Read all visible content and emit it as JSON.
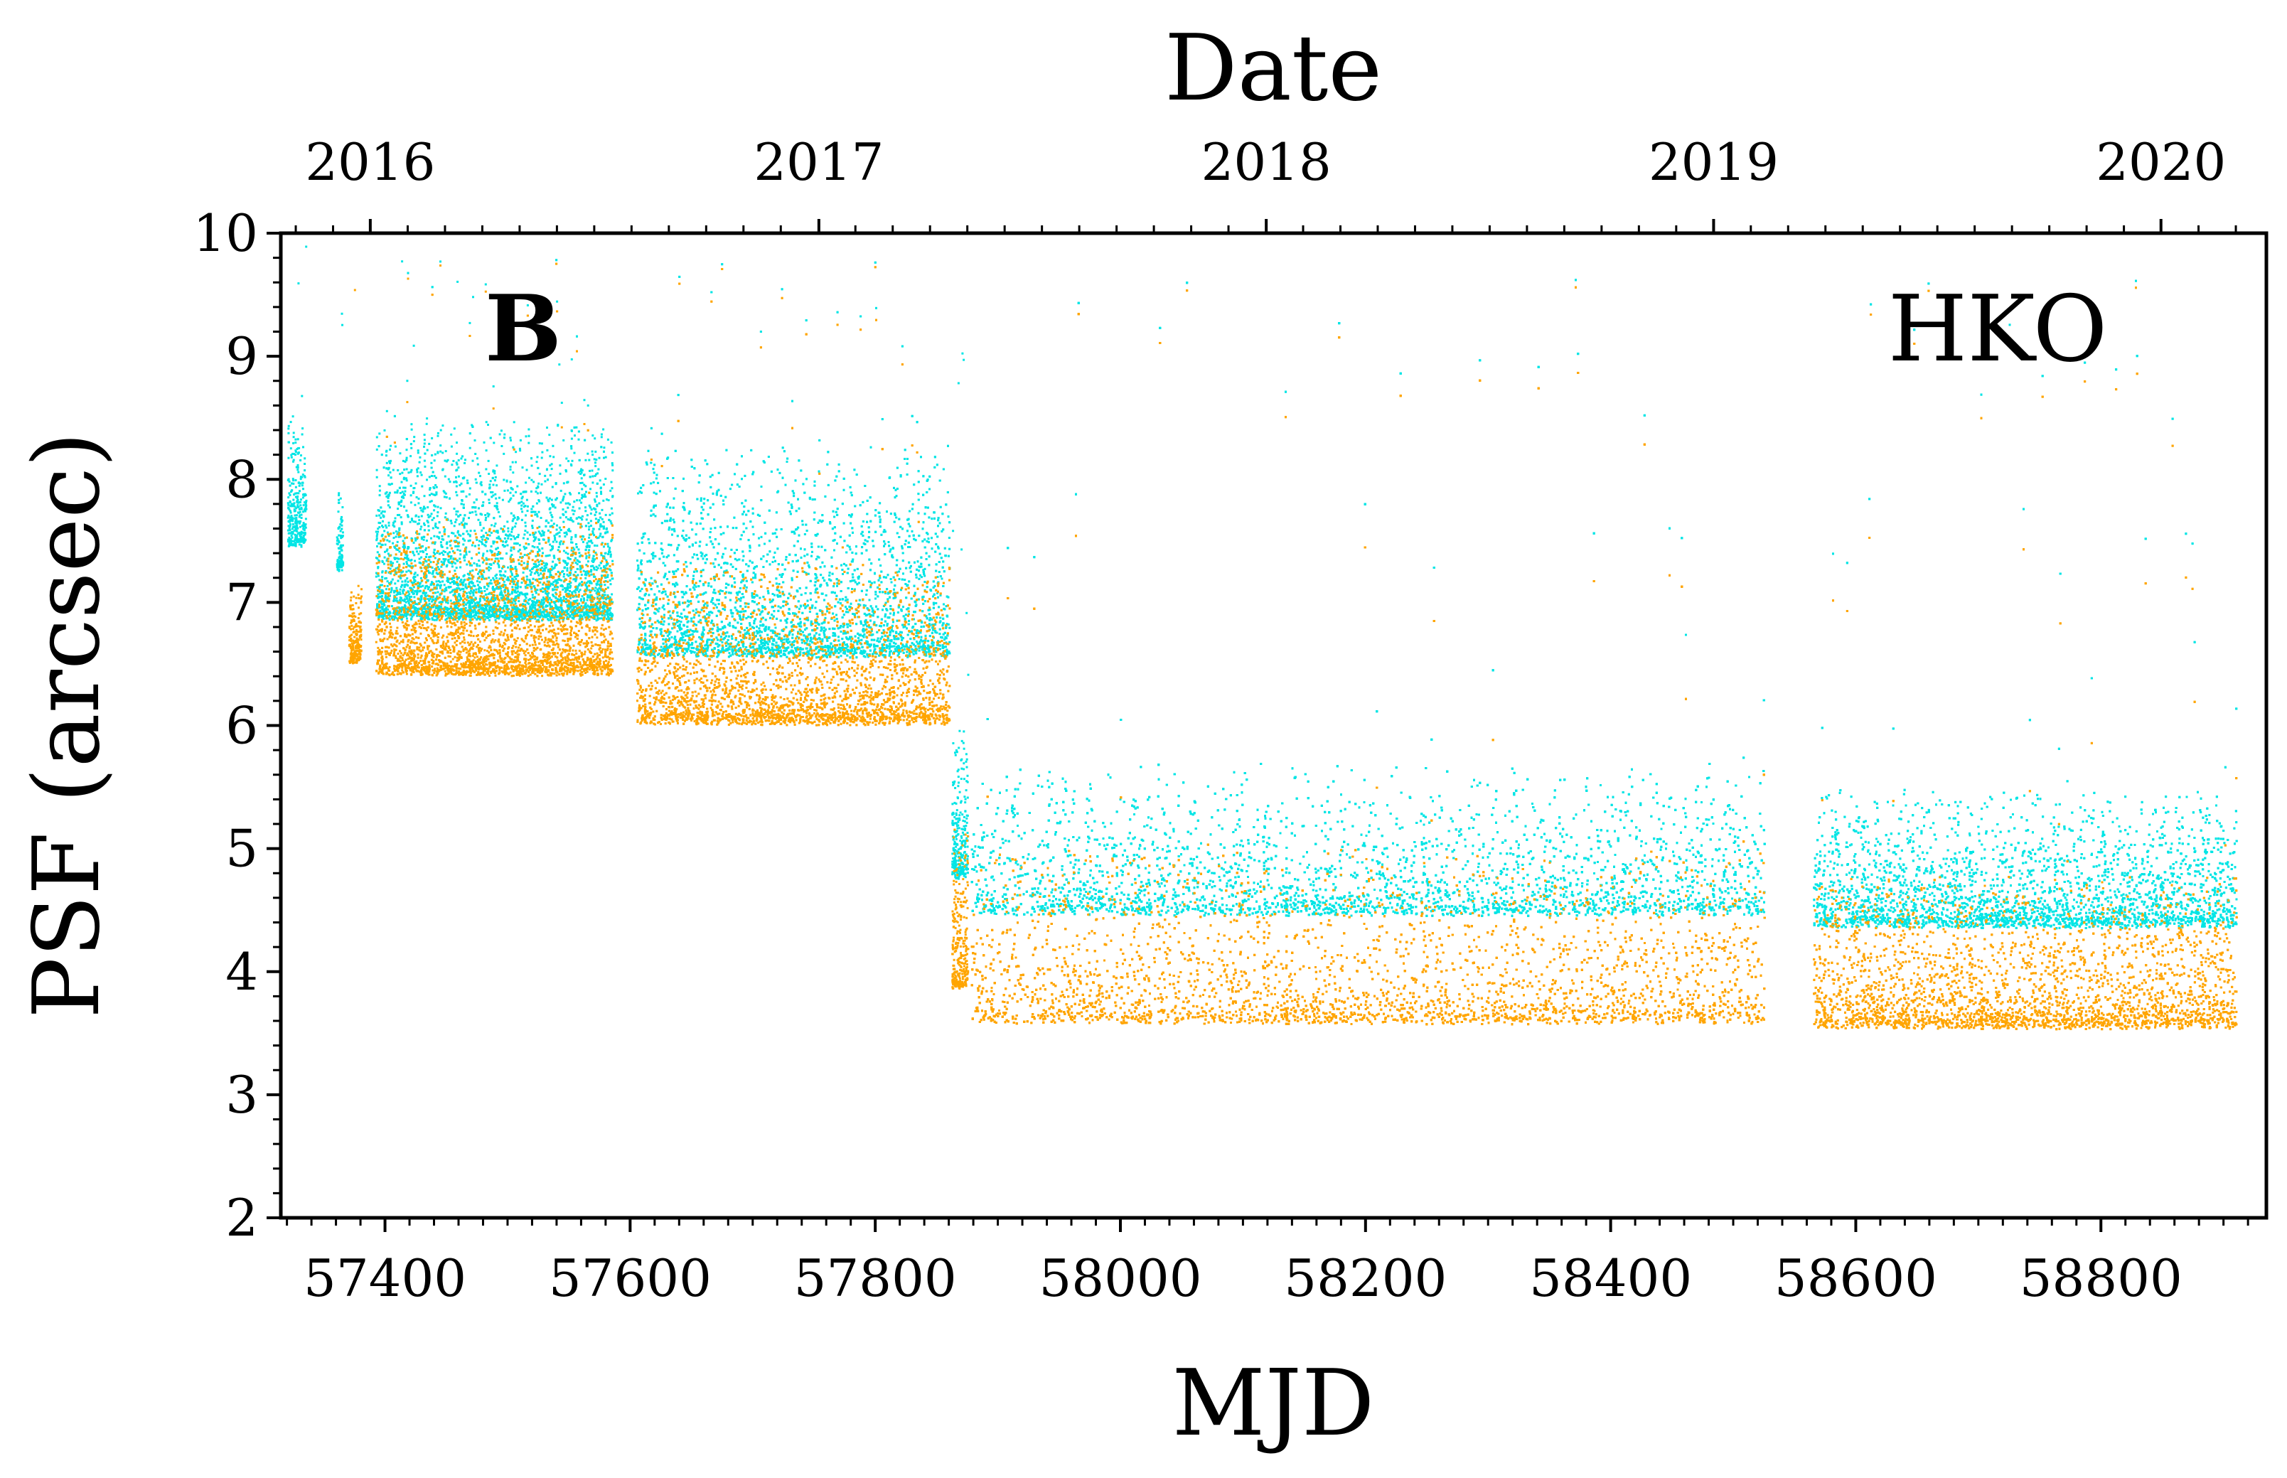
{
  "chart_data": {
    "type": "scatter",
    "panel_label": "B",
    "site_label": "HKO",
    "xlabel": "MJD",
    "ylabel": "PSF (arcsec)",
    "top_axis_title": "Date",
    "xlim": [
      57315,
      58935
    ],
    "ylim": [
      2,
      10
    ],
    "x_ticks": [
      "57400",
      "57600",
      "57800",
      "58000",
      "58200",
      "58400",
      "58600",
      "58800"
    ],
    "x_tick_values": [
      57400,
      57600,
      57800,
      58000,
      58200,
      58400,
      58600,
      58800
    ],
    "y_ticks": [
      "2",
      "3",
      "4",
      "5",
      "6",
      "7",
      "8",
      "9",
      "10"
    ],
    "y_tick_values": [
      2,
      3,
      4,
      5,
      6,
      7,
      8,
      9,
      10
    ],
    "top_ticks": [
      "2016",
      "2017",
      "2018",
      "2019",
      "2020"
    ],
    "top_tick_values": [
      57388,
      57754,
      58119,
      58484,
      58849
    ],
    "series": [
      {
        "name": "cyan",
        "color": "#00e5e5",
        "segments": [
          {
            "start": 57320,
            "end": 57335,
            "base": 7.5,
            "amp": 1.0
          },
          {
            "start": 57360,
            "end": 57365,
            "base": 7.3,
            "amp": 0.6
          },
          {
            "start": 57392,
            "end": 57585,
            "base": 6.9,
            "amp": 1.6
          },
          {
            "start": 57605,
            "end": 57860,
            "base": 6.6,
            "amp": 1.7
          },
          {
            "start": 57862,
            "end": 57875,
            "base": 4.8,
            "amp": 1.2
          },
          {
            "start": 57878,
            "end": 58525,
            "base": 4.5,
            "amp": 1.2
          },
          {
            "start": 58565,
            "end": 58910,
            "base": 4.4,
            "amp": 1.1
          }
        ]
      },
      {
        "name": "orange",
        "color": "#ffa500",
        "segments": [
          {
            "start": 57370,
            "end": 57380,
            "base": 6.55,
            "amp": 0.6
          },
          {
            "start": 57392,
            "end": 57585,
            "base": 6.45,
            "amp": 1.2
          },
          {
            "start": 57605,
            "end": 57860,
            "base": 6.05,
            "amp": 1.3
          },
          {
            "start": 57862,
            "end": 57875,
            "base": 3.9,
            "amp": 1.3
          },
          {
            "start": 57878,
            "end": 58525,
            "base": 3.62,
            "amp": 1.4
          },
          {
            "start": 58565,
            "end": 58910,
            "base": 3.58,
            "amp": 1.2
          }
        ]
      }
    ]
  }
}
